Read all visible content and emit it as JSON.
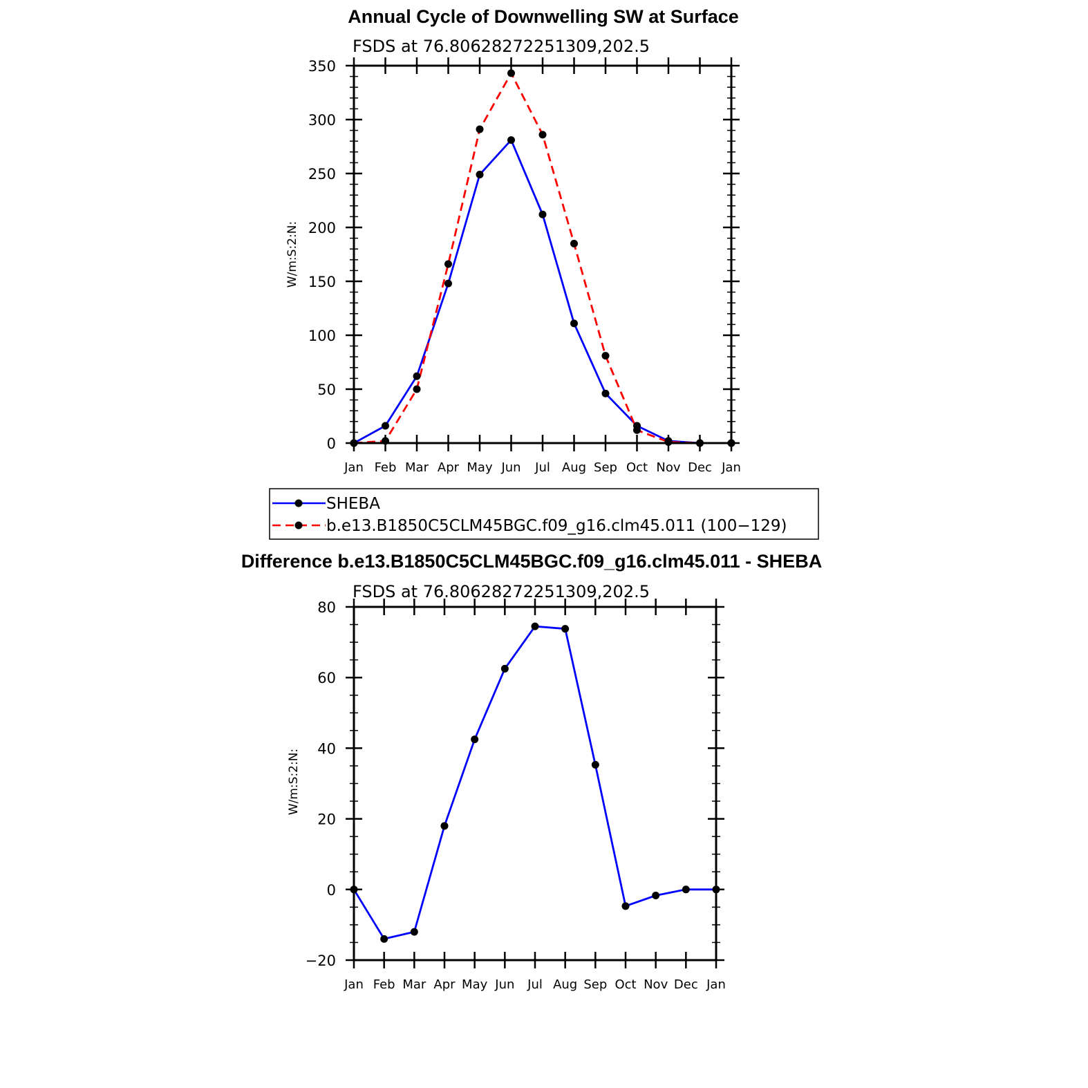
{
  "chart_data": [
    {
      "type": "line",
      "title": "Annual Cycle of Downwelling SW at Surface",
      "subtitle": "FSDS at 76.80628272251309,202.5",
      "ylabel": "W/m:S:2:N:",
      "xlabel": "",
      "ylim": [
        0,
        350
      ],
      "yticks": [
        0,
        50,
        100,
        150,
        200,
        250,
        300,
        350
      ],
      "categories": [
        "Jan",
        "Feb",
        "Mar",
        "Apr",
        "May",
        "Jun",
        "Jul",
        "Aug",
        "Sep",
        "Oct",
        "Nov",
        "Dec",
        "Jan"
      ],
      "series": [
        {
          "name": "SHEBA",
          "color": "#0000ff",
          "dash": "solid",
          "values": [
            0,
            16,
            62,
            148,
            249,
            281,
            212,
            111,
            46,
            16,
            2,
            0,
            0
          ]
        },
        {
          "name": "b.e13.B1850C5CLM45BGC.f09_g16.clm45.011 (100−129)",
          "color": "#ff0000",
          "dash": "dashed",
          "values": [
            0,
            2,
            50,
            166,
            291,
            343,
            286,
            185,
            81,
            12,
            1,
            0,
            0
          ]
        }
      ]
    },
    {
      "type": "line",
      "title": "Difference b.e13.B1850C5CLM45BGC.f09_g16.clm45.011 - SHEBA",
      "subtitle": "FSDS at 76.80628272251309,202.5",
      "ylabel": "W/m:S:2:N:",
      "xlabel": "",
      "ylim": [
        -20,
        80
      ],
      "yticks": [
        -20,
        0,
        20,
        40,
        60,
        80
      ],
      "categories": [
        "Jan",
        "Feb",
        "Mar",
        "Apr",
        "May",
        "Jun",
        "Jul",
        "Aug",
        "Sep",
        "Oct",
        "Nov",
        "Dec",
        "Jan"
      ],
      "series": [
        {
          "name": "Difference",
          "color": "#0000ff",
          "dash": "solid",
          "values": [
            0,
            -14,
            -12,
            18,
            42.5,
            62.5,
            74.5,
            73.8,
            35.3,
            -4.7,
            -1.7,
            0,
            0
          ]
        }
      ]
    }
  ]
}
